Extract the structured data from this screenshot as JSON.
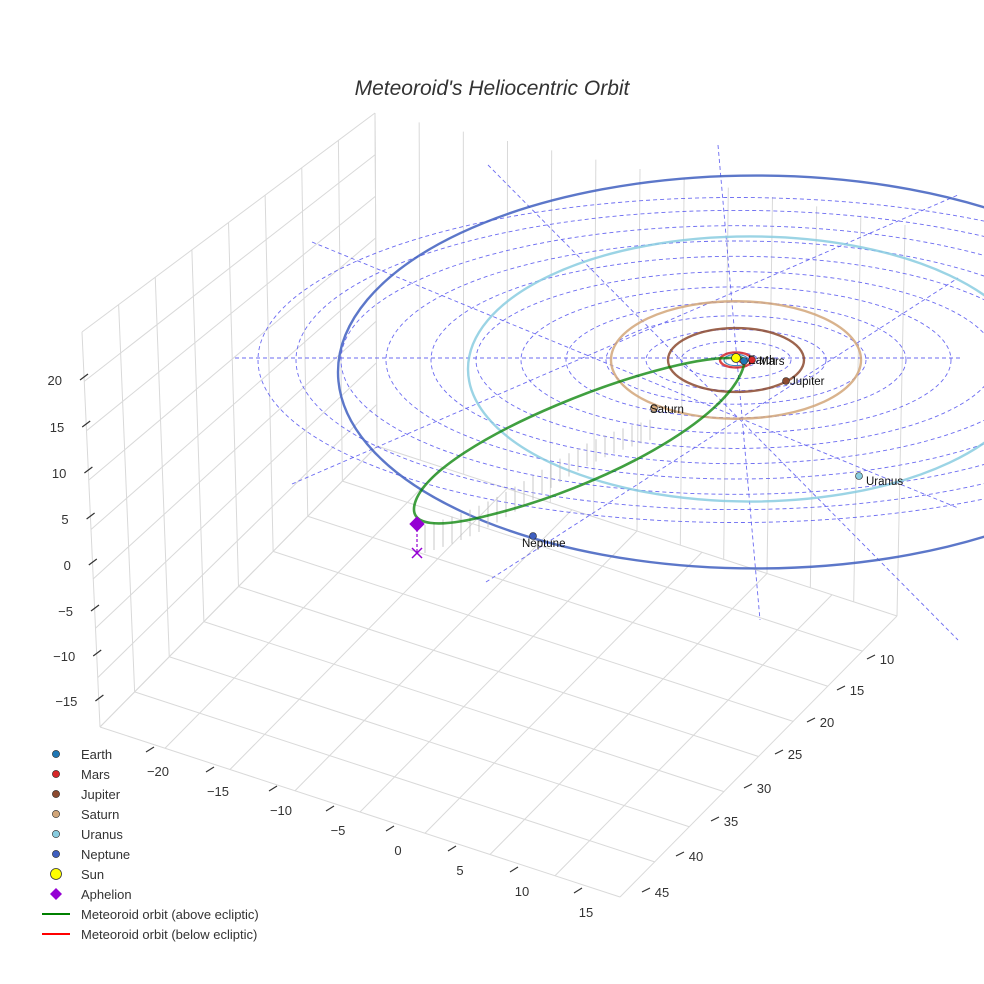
{
  "chart_data": {
    "type": "scatter3d",
    "title": "Meteoroid's Heliocentric Orbit",
    "axes": {
      "x": {
        "ticks": [
          "−20",
          "−15",
          "−10",
          "−5",
          "0",
          "5",
          "10",
          "15"
        ]
      },
      "y": {
        "ticks": [
          "10",
          "15",
          "20",
          "25",
          "30",
          "35",
          "40",
          "45"
        ]
      },
      "z": {
        "ticks": [
          "20",
          "15",
          "10",
          "5",
          "0",
          "−5",
          "−10",
          "−15"
        ]
      }
    },
    "planets": [
      {
        "name": "Earth",
        "orbit_radius_au": 1.0,
        "color": "#1f77b4"
      },
      {
        "name": "Mars",
        "orbit_radius_au": 1.52,
        "color": "#d62728"
      },
      {
        "name": "Jupiter",
        "orbit_radius_au": 5.2,
        "color": "#8c4a2f"
      },
      {
        "name": "Saturn",
        "orbit_radius_au": 9.5,
        "color": "#d2a679"
      },
      {
        "name": "Uranus",
        "orbit_radius_au": 19.2,
        "color": "#89cde0"
      },
      {
        "name": "Neptune",
        "orbit_radius_au": 30.1,
        "color": "#3f5fbf"
      }
    ],
    "sun": {
      "name": "Sun",
      "color": "#ffff00"
    },
    "aphelion": {
      "name": "Aphelion",
      "color": "#9400d3"
    },
    "meteoroid_orbit": [
      {
        "name": "Meteoroid orbit (above ecliptic)",
        "color": "#008000"
      },
      {
        "name": "Meteoroid orbit (below ecliptic)",
        "color": "#ff0000"
      }
    ],
    "legend": {
      "position": "bottom-left",
      "entries": [
        {
          "label": "Earth",
          "kind": "dot",
          "color": "#1f77b4"
        },
        {
          "label": "Mars",
          "kind": "dot",
          "color": "#d62728"
        },
        {
          "label": "Jupiter",
          "kind": "dot",
          "color": "#8c4a2f"
        },
        {
          "label": "Saturn",
          "kind": "dot",
          "color": "#d2a679"
        },
        {
          "label": "Uranus",
          "kind": "dot",
          "color": "#89cde0"
        },
        {
          "label": "Neptune",
          "kind": "dot",
          "color": "#3f5fbf"
        },
        {
          "label": "Sun",
          "kind": "bigdot",
          "color": "#ffff00"
        },
        {
          "label": "Aphelion",
          "kind": "diamond",
          "color": "#9400d3"
        },
        {
          "label": "Meteoroid orbit (above ecliptic)",
          "kind": "line",
          "color": "#008000"
        },
        {
          "label": "Meteoroid orbit (below ecliptic)",
          "kind": "line",
          "color": "#ff0000"
        }
      ]
    }
  }
}
